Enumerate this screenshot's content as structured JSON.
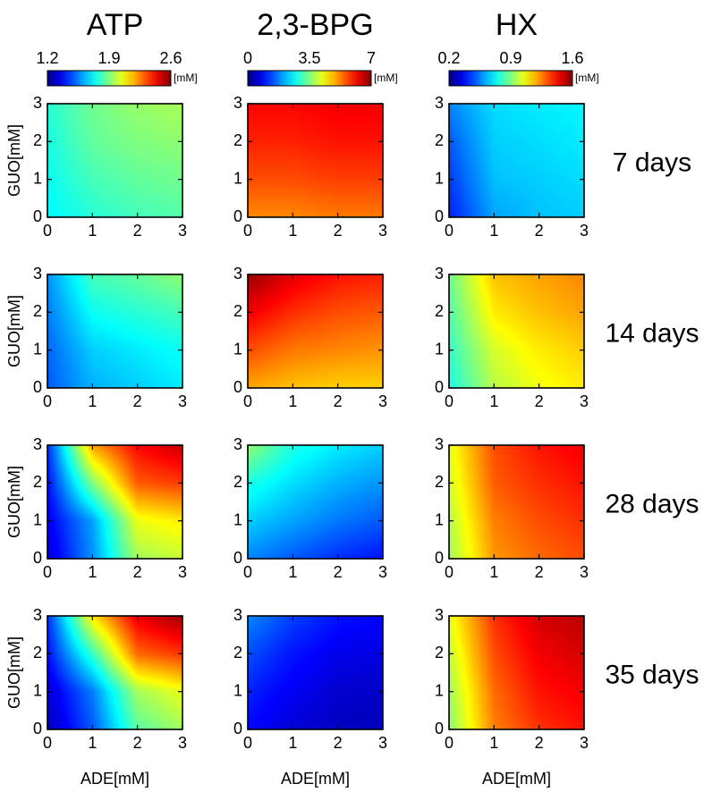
{
  "chart_data": {
    "type": "heatmap",
    "x_axis": {
      "label": "ADE[mM]",
      "range": [
        0,
        3
      ],
      "ticks": [
        "0",
        "1",
        "2",
        "3"
      ]
    },
    "y_axis": {
      "label": "GUO[mM]",
      "range": [
        0,
        3
      ],
      "ticks": [
        "0",
        "1",
        "2",
        "3"
      ]
    },
    "colormap": "jet",
    "rows": [
      {
        "label": "7 days"
      },
      {
        "label": "14 days"
      },
      {
        "label": "28 days"
      },
      {
        "label": "35 days"
      }
    ],
    "columns": [
      {
        "title": "ATP",
        "colorbar": {
          "min": 1.2,
          "max": 2.6,
          "ticks": [
            "1.2",
            "1.9",
            "2.6"
          ],
          "unit": "[mM]"
        },
        "panels": [
          {
            "grid": [
              [
                1.72,
                1.78,
                1.82,
                1.84
              ],
              [
                1.74,
                1.82,
                1.86,
                1.88
              ],
              [
                1.76,
                1.86,
                1.9,
                1.92
              ],
              [
                1.78,
                1.88,
                1.93,
                1.96
              ]
            ]
          },
          {
            "grid": [
              [
                1.5,
                1.62,
                1.66,
                1.7
              ],
              [
                1.52,
                1.66,
                1.7,
                1.74
              ],
              [
                1.55,
                1.74,
                1.78,
                1.82
              ],
              [
                1.58,
                1.82,
                1.86,
                1.92
              ]
            ]
          },
          {
            "grid": [
              [
                1.32,
                1.58,
                1.95,
                2.0
              ],
              [
                1.36,
                1.6,
                2.05,
                2.1
              ],
              [
                1.4,
                1.9,
                2.3,
                2.34
              ],
              [
                1.45,
                2.2,
                2.42,
                2.5
              ]
            ]
          },
          {
            "grid": [
              [
                1.28,
                1.5,
                1.85,
                1.95
              ],
              [
                1.32,
                1.55,
                1.95,
                2.05
              ],
              [
                1.4,
                1.8,
                2.28,
                2.35
              ],
              [
                1.45,
                2.1,
                2.45,
                2.55
              ]
            ]
          }
        ]
      },
      {
        "title": "2,3-BPG",
        "colorbar": {
          "min": 0,
          "max": 7,
          "ticks": [
            "0",
            "3.5",
            "7"
          ],
          "unit": "[mM]"
        },
        "panels": [
          {
            "grid": [
              [
                5.2,
                5.2,
                5.3,
                5.3
              ],
              [
                5.6,
                5.6,
                5.7,
                5.7
              ],
              [
                5.9,
                5.9,
                6.0,
                6.0
              ],
              [
                6.1,
                6.1,
                6.2,
                6.2
              ]
            ]
          },
          {
            "grid": [
              [
                5.0,
                4.8,
                4.7,
                4.7
              ],
              [
                5.6,
                5.3,
                5.2,
                5.1
              ],
              [
                6.2,
                5.8,
                5.6,
                5.5
              ],
              [
                6.8,
                6.3,
                6.0,
                5.9
              ]
            ]
          },
          {
            "grid": [
              [
                1.8,
                1.5,
                1.2,
                1.0
              ],
              [
                2.3,
                2.0,
                1.7,
                1.5
              ],
              [
                2.8,
                2.4,
                2.1,
                1.9
              ],
              [
                3.6,
                2.8,
                2.5,
                2.3
              ]
            ]
          },
          {
            "grid": [
              [
                0.9,
                0.6,
                0.45,
                0.4
              ],
              [
                1.1,
                0.8,
                0.55,
                0.5
              ],
              [
                1.4,
                1.0,
                0.75,
                0.65
              ],
              [
                1.8,
                1.3,
                1.0,
                0.9
              ]
            ]
          }
        ]
      },
      {
        "title": "HX",
        "colorbar": {
          "min": 0.2,
          "max": 1.6,
          "ticks": [
            "0.2",
            "0.9",
            "1.6"
          ],
          "unit": "[mM]"
        },
        "panels": [
          {
            "grid": [
              [
                0.42,
                0.6,
                0.64,
                0.66
              ],
              [
                0.46,
                0.64,
                0.66,
                0.68
              ],
              [
                0.5,
                0.66,
                0.68,
                0.7
              ],
              [
                0.56,
                0.68,
                0.7,
                0.72
              ]
            ]
          },
          {
            "grid": [
              [
                0.76,
                0.98,
                1.06,
                1.1
              ],
              [
                0.8,
                1.02,
                1.1,
                1.14
              ],
              [
                0.84,
                1.1,
                1.16,
                1.2
              ],
              [
                0.88,
                1.16,
                1.2,
                1.24
              ]
            ]
          },
          {
            "grid": [
              [
                0.95,
                1.22,
                1.28,
                1.32
              ],
              [
                0.98,
                1.25,
                1.32,
                1.36
              ],
              [
                1.02,
                1.3,
                1.36,
                1.4
              ],
              [
                1.05,
                1.32,
                1.4,
                1.44
              ]
            ]
          },
          {
            "grid": [
              [
                0.92,
                1.25,
                1.36,
                1.4
              ],
              [
                0.95,
                1.28,
                1.4,
                1.44
              ],
              [
                1.0,
                1.32,
                1.44,
                1.48
              ],
              [
                1.05,
                1.36,
                1.48,
                1.52
              ]
            ]
          }
        ]
      }
    ]
  }
}
